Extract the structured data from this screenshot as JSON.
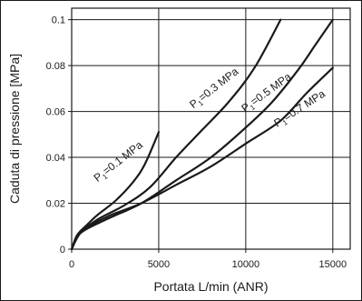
{
  "chart_data": {
    "type": "line",
    "xlabel": "Portata L/min (ANR)",
    "ylabel": "Caduta di pressione [MPa]",
    "xlim": [
      0,
      16000
    ],
    "ylim": [
      0,
      0.105
    ],
    "xticks": [
      0,
      5000,
      10000,
      15000
    ],
    "xtick_labels": [
      "0",
      "5000",
      "10000",
      "15000"
    ],
    "yticks": [
      0,
      0.02,
      0.04,
      0.06,
      0.08,
      0.1
    ],
    "ytick_labels": [
      "0",
      "0.02",
      "0.04",
      "0.06",
      "0.08",
      "0.1"
    ],
    "grid": true,
    "series": [
      {
        "name": "P1=0.1 MPa",
        "label": {
          "pre": "P",
          "sub": "1",
          "post": "=0.1 MPa"
        },
        "points": [
          [
            0,
            0
          ],
          [
            300,
            0.006
          ],
          [
            800,
            0.01
          ],
          [
            1500,
            0.015
          ],
          [
            2500,
            0.021
          ],
          [
            3500,
            0.029
          ],
          [
            4200,
            0.037
          ],
          [
            5000,
            0.051
          ]
        ]
      },
      {
        "name": "P1=0.3 MPa",
        "label": {
          "pre": "P",
          "sub": "1",
          "post": "=0.3 MPa"
        },
        "points": [
          [
            0,
            0
          ],
          [
            500,
            0.007
          ],
          [
            1500,
            0.013
          ],
          [
            3000,
            0.019
          ],
          [
            4500,
            0.027
          ],
          [
            6000,
            0.04
          ],
          [
            7500,
            0.052
          ],
          [
            9000,
            0.064
          ],
          [
            10500,
            0.079
          ],
          [
            12000,
            0.1
          ]
        ]
      },
      {
        "name": "P1=0.5 MPa",
        "label": {
          "pre": "P",
          "sub": "1",
          "post": "=0.5 MPa"
        },
        "points": [
          [
            0,
            0
          ],
          [
            500,
            0.007
          ],
          [
            2000,
            0.013
          ],
          [
            4000,
            0.02
          ],
          [
            6000,
            0.03
          ],
          [
            8000,
            0.04
          ],
          [
            10000,
            0.053
          ],
          [
            11500,
            0.064
          ],
          [
            13000,
            0.078
          ],
          [
            14000,
            0.089
          ],
          [
            15000,
            0.1
          ]
        ]
      },
      {
        "name": "P1=0.7 MPa",
        "label": {
          "pre": "P",
          "sub": "1",
          "post": "=0.7 MPa"
        },
        "points": [
          [
            0,
            0
          ],
          [
            500,
            0.007
          ],
          [
            2000,
            0.014
          ],
          [
            4000,
            0.02
          ],
          [
            6000,
            0.028
          ],
          [
            8000,
            0.036
          ],
          [
            10000,
            0.046
          ],
          [
            12000,
            0.056
          ],
          [
            13500,
            0.068
          ],
          [
            15000,
            0.079
          ]
        ]
      }
    ]
  }
}
